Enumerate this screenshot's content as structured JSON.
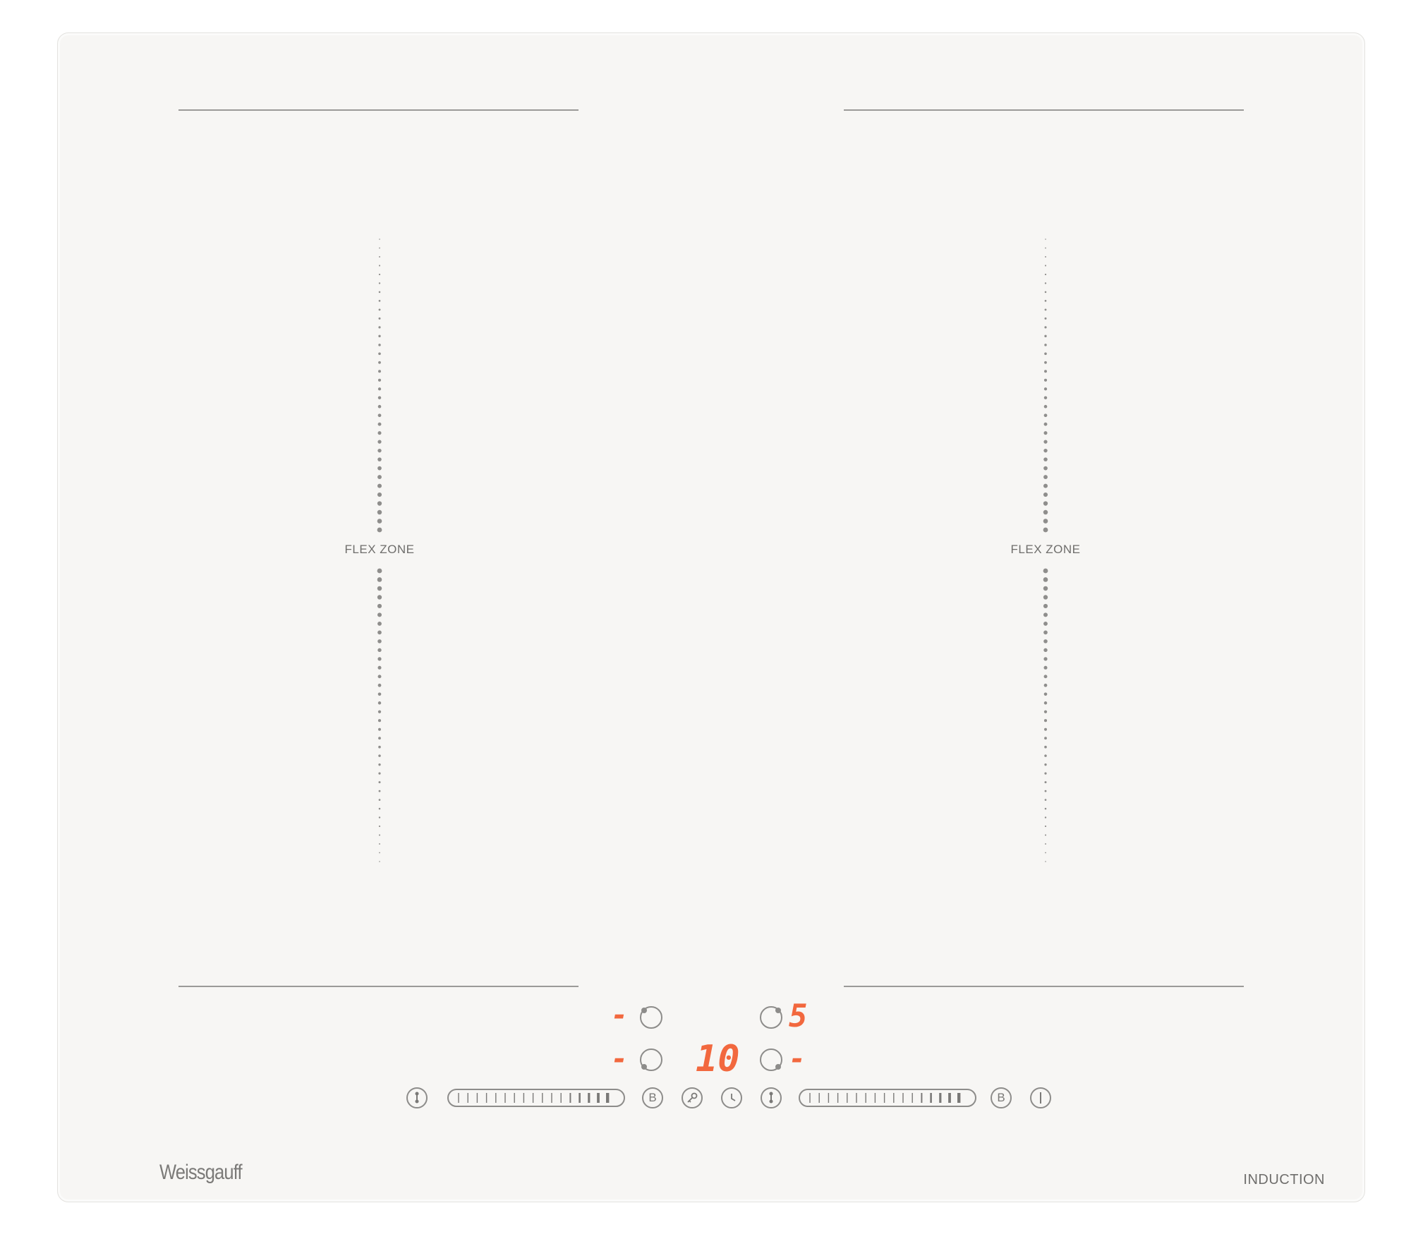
{
  "hob": {
    "brand": "Weissgauff",
    "type_label": "INDUCTION",
    "left_zone": {
      "label": "FLEX ZONE"
    },
    "right_zone": {
      "label": "FLEX ZONE"
    }
  },
  "displays": {
    "top_left": "-",
    "top_right": "5",
    "bottom_left": "-",
    "center": "10",
    "bottom_right": "-"
  },
  "controls": {
    "boost_left_label": "B",
    "boost_right_label": "B"
  },
  "colors": {
    "display": "#f2683e",
    "panel": "#f7f6f4",
    "lines": "#9b9a98"
  }
}
